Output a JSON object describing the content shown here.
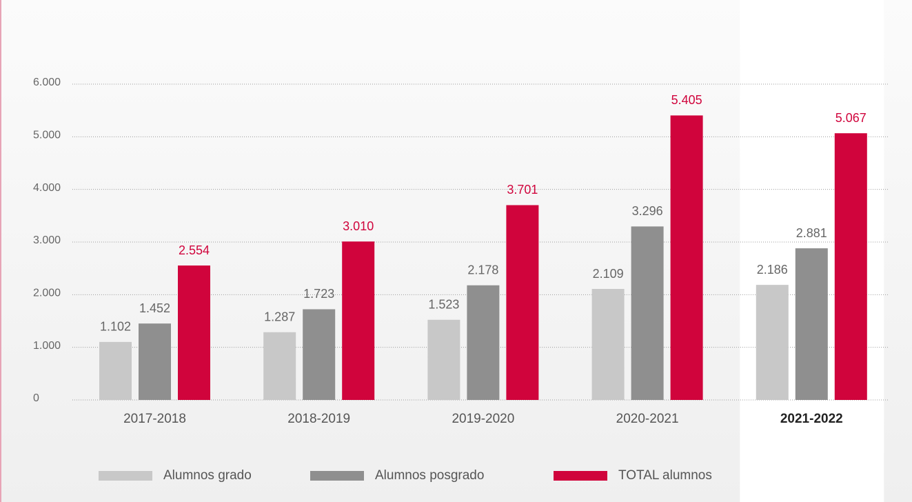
{
  "chart_data": {
    "type": "bar",
    "categories": [
      "2017-2018",
      "2018-2019",
      "2019-2020",
      "2020-2021",
      "2021-2022"
    ],
    "highlight": 4,
    "series": [
      {
        "name": "Alumnos grado",
        "color": "#c8c8c8",
        "values": [
          1102,
          1287,
          1523,
          2109,
          2186
        ],
        "value_labels": [
          "1.102",
          "1.287",
          "1.523",
          "2.109",
          "2.186"
        ]
      },
      {
        "name": "Alumnos posgrado",
        "color": "#8f8f8f",
        "values": [
          1452,
          1723,
          2178,
          3296,
          2881
        ],
        "value_labels": [
          "1.452",
          "1.723",
          "2.178",
          "3.296",
          "2.881"
        ]
      },
      {
        "name": "TOTAL alumnos",
        "color": "#d0043c",
        "values": [
          2554,
          3010,
          3701,
          5405,
          5067
        ],
        "value_labels": [
          "2.554",
          "3.010",
          "3.701",
          "5.405",
          "5.067"
        ]
      }
    ],
    "ylim": [
      0,
      6000
    ],
    "yticks": [
      0,
      {
        "value": 1000,
        "label": "1.000"
      },
      {
        "value": 2000,
        "label": "2.000"
      },
      {
        "value": 3000,
        "label": "3.000"
      },
      {
        "value": 4000,
        "label": "4.000"
      },
      {
        "value": 5000,
        "label": "5.000"
      },
      {
        "value": 6000,
        "label": "6.000"
      }
    ],
    "grid": true,
    "legend": "bottom"
  }
}
